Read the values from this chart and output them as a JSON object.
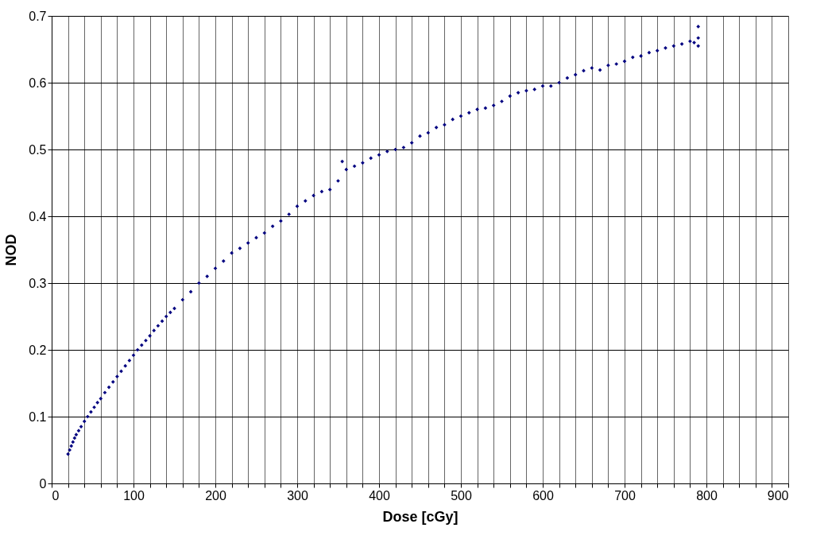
{
  "chart_data": {
    "type": "scatter",
    "xlabel": "Dose [cGy]",
    "ylabel": "NOD",
    "xlim": [
      0,
      900
    ],
    "ylim": [
      0,
      0.7
    ],
    "xticks": [
      0,
      {
        "value": 20,
        "label": null
      },
      {
        "value": 40,
        "label": null
      },
      {
        "value": 60,
        "label": null
      },
      {
        "value": 80,
        "label": null
      },
      100,
      {
        "value": 120,
        "label": null
      },
      {
        "value": 140,
        "label": null
      },
      {
        "value": 160,
        "label": null
      },
      {
        "value": 180,
        "label": null
      },
      200,
      {
        "value": 220,
        "label": null
      },
      {
        "value": 240,
        "label": null
      },
      {
        "value": 260,
        "label": null
      },
      {
        "value": 280,
        "label": null
      },
      300,
      {
        "value": 320,
        "label": null
      },
      {
        "value": 340,
        "label": null
      },
      {
        "value": 360,
        "label": null
      },
      {
        "value": 380,
        "label": null
      },
      400,
      {
        "value": 420,
        "label": null
      },
      {
        "value": 440,
        "label": null
      },
      {
        "value": 460,
        "label": null
      },
      {
        "value": 480,
        "label": null
      },
      500,
      {
        "value": 520,
        "label": null
      },
      {
        "value": 540,
        "label": null
      },
      {
        "value": 560,
        "label": null
      },
      {
        "value": 580,
        "label": null
      },
      600,
      {
        "value": 620,
        "label": null
      },
      {
        "value": 640,
        "label": null
      },
      {
        "value": 660,
        "label": null
      },
      {
        "value": 680,
        "label": null
      },
      700,
      {
        "value": 720,
        "label": null
      },
      {
        "value": 740,
        "label": null
      },
      {
        "value": 760,
        "label": null
      },
      {
        "value": 780,
        "label": null
      },
      800,
      {
        "value": 820,
        "label": null
      },
      {
        "value": 840,
        "label": null
      },
      {
        "value": 860,
        "label": null
      },
      {
        "value": 880,
        "label": null
      },
      900
    ],
    "yticks": [
      0,
      0.1,
      0.2,
      0.3,
      0.4,
      0.5,
      0.6,
      0.7
    ],
    "grid": true,
    "marker": "diamond",
    "series": [
      {
        "color": "#000080",
        "x": [
          20,
          22,
          24,
          26,
          28,
          30,
          33,
          36,
          40,
          44,
          48,
          52,
          56,
          60,
          65,
          70,
          75,
          80,
          85,
          90,
          95,
          100,
          105,
          110,
          115,
          120,
          125,
          130,
          135,
          140,
          145,
          150,
          160,
          170,
          180,
          190,
          200,
          210,
          220,
          230,
          240,
          250,
          260,
          270,
          280,
          290,
          300,
          310,
          320,
          330,
          340,
          350,
          355,
          360,
          370,
          380,
          390,
          400,
          410,
          420,
          430,
          440,
          450,
          460,
          470,
          480,
          490,
          500,
          510,
          520,
          530,
          540,
          550,
          560,
          570,
          580,
          590,
          600,
          610,
          620,
          630,
          640,
          650,
          660,
          670,
          680,
          690,
          700,
          710,
          720,
          730,
          740,
          750,
          760,
          770,
          780,
          785,
          790,
          790,
          790
        ],
        "values": [
          0.044,
          0.05,
          0.056,
          0.062,
          0.068,
          0.073,
          0.079,
          0.085,
          0.093,
          0.1,
          0.107,
          0.114,
          0.121,
          0.127,
          0.136,
          0.144,
          0.152,
          0.16,
          0.168,
          0.176,
          0.184,
          0.192,
          0.2,
          0.207,
          0.214,
          0.221,
          0.229,
          0.236,
          0.243,
          0.25,
          0.256,
          0.262,
          0.275,
          0.287,
          0.3,
          0.31,
          0.322,
          0.333,
          0.345,
          0.352,
          0.36,
          0.368,
          0.375,
          0.385,
          0.393,
          0.403,
          0.415,
          0.423,
          0.431,
          0.437,
          0.44,
          0.453,
          0.482,
          0.47,
          0.475,
          0.48,
          0.487,
          0.492,
          0.497,
          0.5,
          0.503,
          0.51,
          0.52,
          0.525,
          0.533,
          0.537,
          0.545,
          0.55,
          0.555,
          0.56,
          0.562,
          0.566,
          0.572,
          0.58,
          0.585,
          0.588,
          0.59,
          0.595,
          0.595,
          0.6,
          0.607,
          0.612,
          0.618,
          0.622,
          0.619,
          0.626,
          0.628,
          0.632,
          0.638,
          0.64,
          0.645,
          0.648,
          0.652,
          0.655,
          0.658,
          0.662,
          0.66,
          0.667,
          0.684,
          0.655
        ]
      }
    ]
  }
}
